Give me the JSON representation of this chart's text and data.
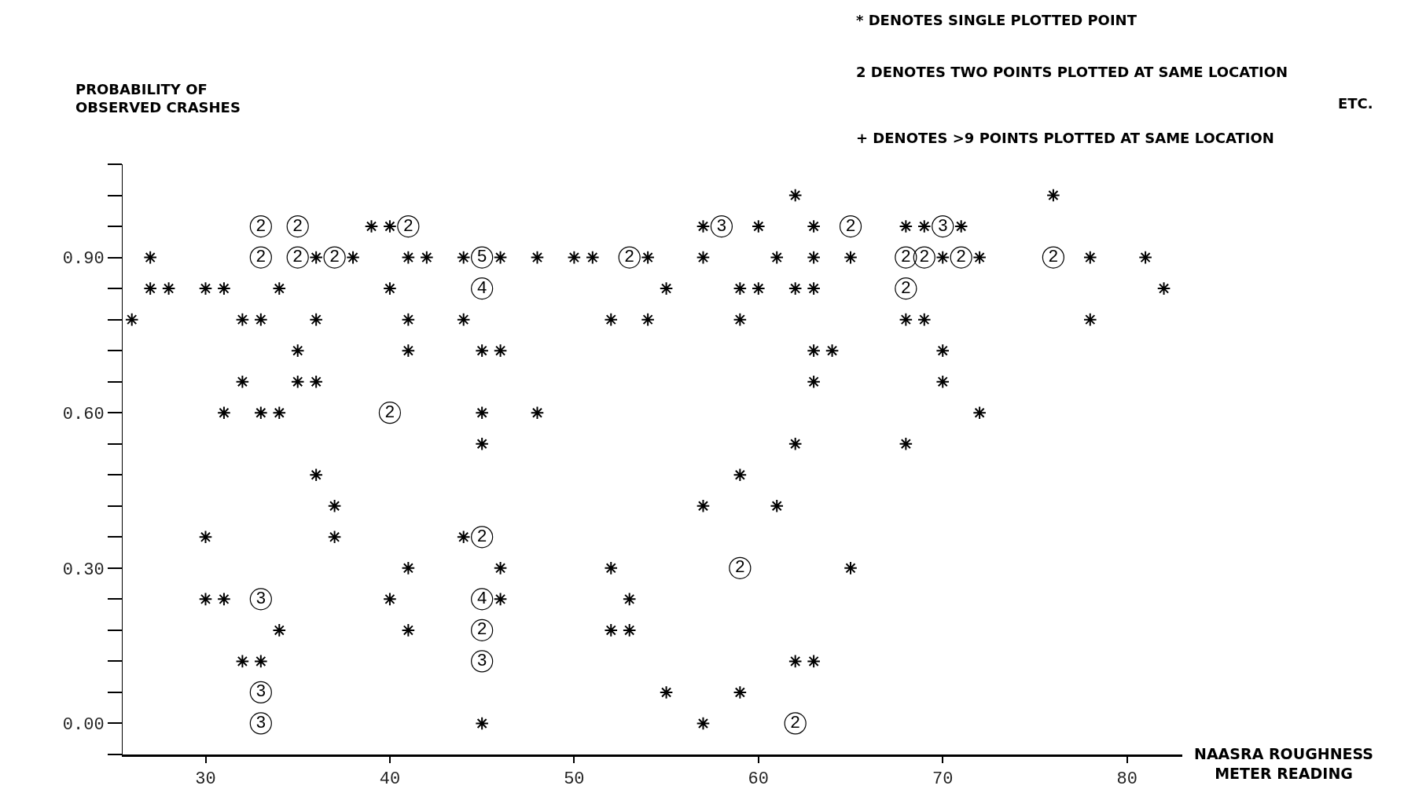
{
  "chart_data": {
    "type": "scatter",
    "xlabel": "NAASRA ROUGHNESS\nMETER READING",
    "annotations": [
      "PROBABILITY OF\nOBSERVED CRASHES",
      "* DENOTES SINGLE PLOTTED POINT",
      "2 DENOTES TWO POINTS PLOTTED AT SAME LOCATION",
      "ETC.",
      "+ DENOTES >9 POINTS PLOTTED AT SAME LOCATION"
    ],
    "series": [
      {
        "color": "#000000",
        "marker": "cross",
        "x": [
          62,
          76,
          39,
          40,
          57,
          60,
          63,
          68,
          69,
          71,
          27,
          36,
          38,
          41,
          42,
          44,
          46,
          48,
          50,
          51,
          54,
          57,
          61,
          63,
          65,
          70,
          72,
          78,
          81,
          27,
          28,
          30,
          31,
          34,
          40,
          55,
          59,
          60,
          62,
          63,
          82,
          26,
          32,
          33,
          36,
          41,
          44,
          52,
          54,
          59,
          68,
          69,
          78,
          35,
          41,
          45,
          46,
          63,
          64,
          70,
          32,
          35,
          36,
          63,
          70,
          31,
          33,
          34,
          45,
          48,
          72,
          45,
          62,
          68,
          36,
          59,
          37,
          57,
          61,
          30,
          37,
          44,
          41,
          46,
          52,
          65,
          30,
          31,
          40,
          46,
          53,
          34,
          41,
          52,
          53,
          32,
          33,
          62,
          63,
          55,
          59,
          45,
          57
        ],
        "values": [
          1.02,
          1.02,
          0.96,
          0.96,
          0.96,
          0.96,
          0.96,
          0.96,
          0.96,
          0.96,
          0.9,
          0.9,
          0.9,
          0.9,
          0.9,
          0.9,
          0.9,
          0.9,
          0.9,
          0.9,
          0.9,
          0.9,
          0.9,
          0.9,
          0.9,
          0.9,
          0.9,
          0.9,
          0.9,
          0.84,
          0.84,
          0.84,
          0.84,
          0.84,
          0.84,
          0.84,
          0.84,
          0.84,
          0.84,
          0.84,
          0.84,
          0.78,
          0.78,
          0.78,
          0.78,
          0.78,
          0.78,
          0.78,
          0.78,
          0.78,
          0.78,
          0.78,
          0.78,
          0.72,
          0.72,
          0.72,
          0.72,
          0.72,
          0.72,
          0.72,
          0.66,
          0.66,
          0.66,
          0.66,
          0.66,
          0.6,
          0.6,
          0.6,
          0.6,
          0.6,
          0.6,
          0.54,
          0.54,
          0.54,
          0.48,
          0.48,
          0.42,
          0.42,
          0.42,
          0.36,
          0.36,
          0.36,
          0.3,
          0.3,
          0.3,
          0.3,
          0.24,
          0.24,
          0.24,
          0.24,
          0.24,
          0.18,
          0.18,
          0.18,
          0.18,
          0.12,
          0.12,
          0.12,
          0.12,
          0.06,
          0.06,
          0,
          0
        ]
      },
      {
        "name": "2",
        "color": "#000000",
        "marker": "circle",
        "x": [
          33,
          35,
          41,
          65,
          33,
          35,
          37,
          53,
          68,
          69,
          71,
          76,
          68,
          40,
          45,
          59,
          45,
          62
        ],
        "values": [
          0.96,
          0.96,
          0.96,
          0.96,
          0.9,
          0.9,
          0.9,
          0.9,
          0.9,
          0.9,
          0.9,
          0.9,
          0.84,
          0.6,
          0.36,
          0.3,
          0.18,
          0
        ]
      },
      {
        "name": "3",
        "color": "#000000",
        "marker": "circle",
        "x": [
          58,
          70,
          33,
          45,
          33,
          33
        ],
        "values": [
          0.96,
          0.96,
          0.24,
          0.12,
          0.06,
          0
        ]
      },
      {
        "name": "4",
        "color": "#000000",
        "marker": "circle",
        "x": [
          45,
          45
        ],
        "values": [
          0.84,
          0.24
        ]
      },
      {
        "name": "5",
        "color": "#000000",
        "marker": "circle",
        "x": [
          45
        ],
        "values": [
          0.9
        ]
      }
    ],
    "xlim": [
      25.5,
      83
    ],
    "xticks": [
      30,
      40,
      50,
      60,
      70,
      80
    ],
    "ylim": [
      -0.06,
      1.08
    ],
    "yticks": [
      {
        "value": 0,
        "label": "0.00"
      },
      {
        "value": 0.3,
        "label": "0.30"
      },
      {
        "value": 0.6,
        "label": "0.60"
      },
      {
        "value": 0.9,
        "label": "0.90"
      }
    ]
  }
}
